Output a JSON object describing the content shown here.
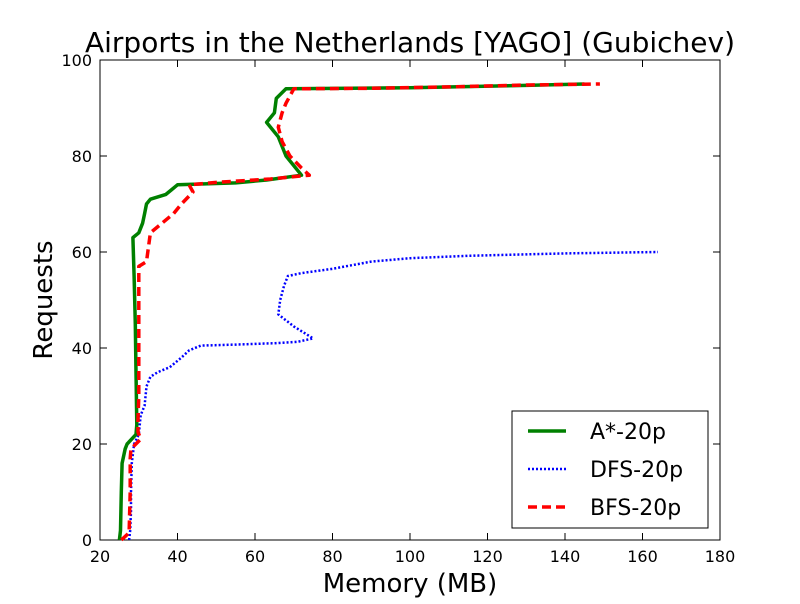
{
  "chart_data": {
    "type": "line",
    "title": "Airports in the Netherlands [YAGO] (Gubichev)",
    "xlabel": "Memory (MB)",
    "ylabel": "Requests",
    "xlim": [
      20,
      180
    ],
    "ylim": [
      0,
      100
    ],
    "xticks": [
      20,
      40,
      60,
      80,
      100,
      120,
      140,
      160,
      180
    ],
    "yticks": [
      0,
      20,
      40,
      60,
      80,
      100
    ],
    "grid": false,
    "legend_position": "lower-right",
    "series": [
      {
        "name": "A*-20p",
        "color": "#008000",
        "style": "solid",
        "points": [
          [
            25,
            0
          ],
          [
            25.3,
            2
          ],
          [
            25.5,
            10
          ],
          [
            25.7,
            16
          ],
          [
            26.5,
            19
          ],
          [
            27,
            20
          ],
          [
            29.3,
            22
          ],
          [
            29.5,
            24
          ],
          [
            29.3,
            35
          ],
          [
            29.1,
            45
          ],
          [
            28.8,
            55
          ],
          [
            28.5,
            63
          ],
          [
            30,
            64
          ],
          [
            31,
            66
          ],
          [
            31.5,
            68
          ],
          [
            32,
            70
          ],
          [
            33,
            71
          ],
          [
            37,
            72
          ],
          [
            38.5,
            73
          ],
          [
            40,
            74
          ],
          [
            55,
            74.4
          ],
          [
            63,
            75
          ],
          [
            72,
            76
          ],
          [
            68,
            80
          ],
          [
            66,
            84
          ],
          [
            63,
            87
          ],
          [
            65,
            89
          ],
          [
            65.5,
            92
          ],
          [
            68,
            94
          ],
          [
            100,
            94.2
          ],
          [
            130,
            94.7
          ],
          [
            145,
            95
          ]
        ]
      },
      {
        "name": "DFS-20p",
        "color": "#0000ff",
        "style": "dotted",
        "points": [
          [
            27.5,
            0
          ],
          [
            27.8,
            2
          ],
          [
            28,
            6
          ],
          [
            28,
            10
          ],
          [
            28.2,
            16
          ],
          [
            28.8,
            20
          ],
          [
            30,
            22
          ],
          [
            30.5,
            26
          ],
          [
            31.5,
            28
          ],
          [
            32,
            32
          ],
          [
            33,
            34
          ],
          [
            35,
            35
          ],
          [
            38,
            36
          ],
          [
            41,
            38
          ],
          [
            43,
            39.5
          ],
          [
            46,
            40.5
          ],
          [
            55,
            40.7
          ],
          [
            65,
            41
          ],
          [
            71,
            41.3
          ],
          [
            75,
            42
          ],
          [
            70,
            44.5
          ],
          [
            66,
            47
          ],
          [
            66.5,
            50
          ],
          [
            67.5,
            53
          ],
          [
            68.5,
            55
          ],
          [
            72,
            55.6
          ],
          [
            80,
            56.5
          ],
          [
            90,
            58
          ],
          [
            100,
            58.7
          ],
          [
            115,
            59.2
          ],
          [
            140,
            59.7
          ],
          [
            164,
            60
          ]
        ]
      },
      {
        "name": "BFS-20p",
        "color": "#ff0000",
        "style": "dashed",
        "points": [
          [
            25.5,
            0
          ],
          [
            27.5,
            1.5
          ],
          [
            27.8,
            10
          ],
          [
            27.8,
            17
          ],
          [
            28,
            19
          ],
          [
            30.5,
            21
          ],
          [
            29.8,
            22.5
          ],
          [
            29.8,
            25
          ],
          [
            30,
            30
          ],
          [
            30,
            40
          ],
          [
            30,
            50
          ],
          [
            30,
            57
          ],
          [
            32,
            58
          ],
          [
            33,
            64
          ],
          [
            36,
            66
          ],
          [
            39,
            68
          ],
          [
            41,
            70
          ],
          [
            44,
            72.5
          ],
          [
            43,
            74
          ],
          [
            50,
            74.5
          ],
          [
            64,
            75.2
          ],
          [
            74,
            76
          ],
          [
            72,
            77.5
          ],
          [
            69,
            80
          ],
          [
            67,
            83
          ],
          [
            66,
            86
          ],
          [
            67,
            89
          ],
          [
            68,
            91
          ],
          [
            70,
            94
          ],
          [
            90,
            94.1
          ],
          [
            110,
            94.4
          ],
          [
            130,
            94.8
          ],
          [
            149,
            95
          ]
        ]
      }
    ]
  }
}
